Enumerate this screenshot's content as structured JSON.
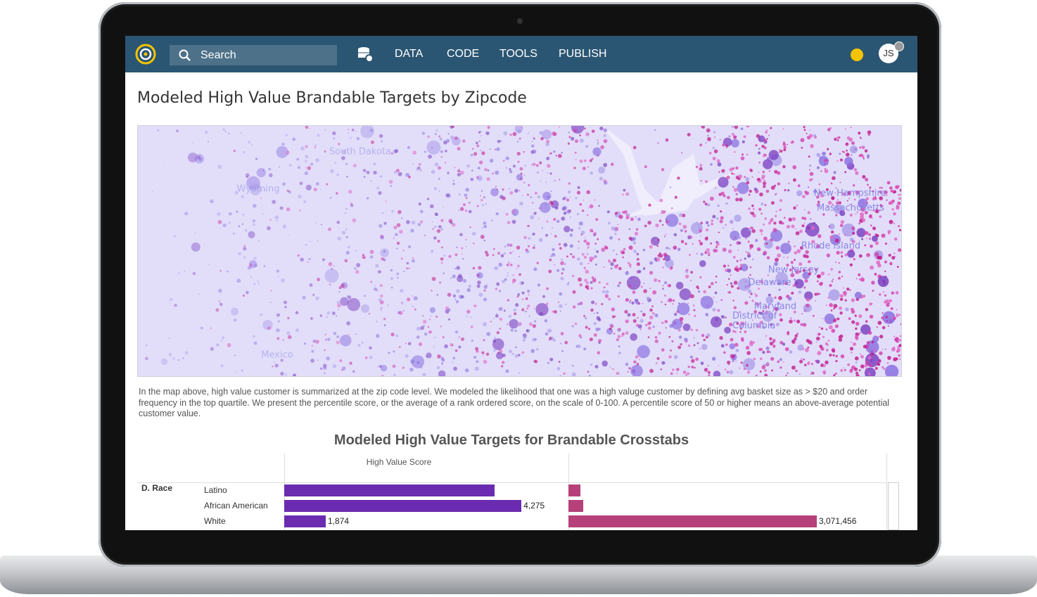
{
  "nav": {
    "search": "Search",
    "items": [
      "DATA",
      "CODE",
      "TOOLS",
      "PUBLISH"
    ],
    "avatar": "JS"
  },
  "title": "Modeled High Value Brandable Targets by Zipcode",
  "map": {
    "labels": [
      "South Dakota",
      "Wyoming",
      "New Hampshire",
      "Massachusetts",
      "Rhode Island",
      "New Jersey",
      "Delaware",
      "Maryland",
      "District of Columbia",
      "Mexico"
    ]
  },
  "description": "In the map above, high value customer is summarized at the zip code level. We modeled the likelihood that one was a high valuge customer by defining avg basket size as > $20 and order frequency in the top quartile. We present the percentile score, or the average of a rank ordered score, on the scale of 0-100. A percentile score of 50 or higher means an above-average potential customer value.",
  "chart_data": {
    "type": "bar",
    "orientation": "horizontal",
    "title": "Modeled High Value Targets for Brandable Crosstabs",
    "group": "D. Race",
    "categories": [
      "Latino",
      "African American",
      "White"
    ],
    "series": [
      {
        "name": "High Value Score",
        "color": "#6a2bb0",
        "values": [
          3946,
          4275,
          1874
        ],
        "value_labels": [
          null,
          "4,275",
          "1,874"
        ],
        "xlim": [
          1364,
          4844
        ]
      },
      {
        "color": "#b5407a",
        "values": [
          148000,
          183000,
          3071456
        ],
        "value_labels": [
          null,
          null,
          "3,071,456"
        ],
        "xlim": [
          0,
          3933000
        ]
      }
    ]
  }
}
